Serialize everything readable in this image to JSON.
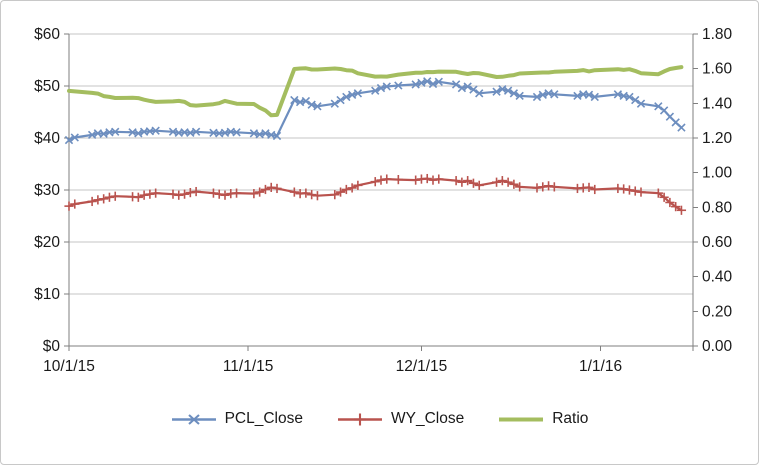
{
  "chart_data": {
    "type": "line",
    "title": "",
    "x_axis": {
      "tick_labels": [
        "10/1/15",
        "11/1/15",
        "12/1/15",
        "1/1/16"
      ],
      "tick_positions_days": [
        0,
        31,
        61,
        92
      ],
      "total_days": 108
    },
    "left_axis": {
      "min": 0,
      "max": 60,
      "step": 10,
      "tick_labels": [
        "$0",
        "$10",
        "$20",
        "$30",
        "$40",
        "$50",
        "$60"
      ]
    },
    "right_axis": {
      "min": 0,
      "max": 1.8,
      "step": 0.2,
      "tick_labels": [
        "0.00",
        "0.20",
        "0.40",
        "0.60",
        "0.80",
        "1.00",
        "1.20",
        "1.40",
        "1.60",
        "1.80"
      ]
    },
    "grid": true,
    "legend": {
      "position": "bottom",
      "items": [
        "PCL_Close",
        "WY_Close",
        "Ratio"
      ]
    },
    "style": {
      "grid_color": "#c6c6c6",
      "axis_color": "#7f7f7f",
      "text_color": "#1a1a1a",
      "background": "#ffffff",
      "frame_border": "#c8c8c8"
    },
    "x_days": [
      0,
      1,
      4,
      5,
      6,
      7,
      8,
      11,
      12,
      13,
      14,
      15,
      18,
      19,
      20,
      21,
      22,
      25,
      26,
      27,
      28,
      29,
      32,
      33,
      34,
      35,
      36,
      39,
      40,
      41,
      42,
      43,
      46,
      47,
      48,
      49,
      50,
      53,
      54,
      55,
      57,
      60,
      61,
      62,
      63,
      64,
      67,
      68,
      69,
      70,
      71,
      74,
      75,
      76,
      77,
      78,
      81,
      82,
      83,
      84,
      88,
      89,
      90,
      91,
      95,
      96,
      97,
      98,
      99,
      102,
      103,
      104,
      105,
      106
    ],
    "series": [
      {
        "name": "PCL_Close",
        "axis": "left",
        "color": "#6d8ebf",
        "marker": "x",
        "line_width": 2.2,
        "values": [
          39.6,
          40.1,
          40.6,
          40.9,
          40.8,
          41.1,
          41.2,
          41.1,
          40.9,
          41.2,
          41.3,
          41.4,
          41.2,
          41.0,
          41.1,
          41.0,
          41.2,
          41.0,
          40.9,
          41.0,
          41.2,
          41.1,
          40.9,
          40.7,
          40.9,
          40.6,
          40.4,
          47.3,
          46.9,
          47.1,
          46.4,
          46.1,
          46.6,
          47.3,
          47.9,
          48.3,
          48.6,
          49.1,
          49.6,
          49.9,
          50.1,
          50.3,
          50.6,
          50.9,
          50.4,
          50.8,
          50.3,
          49.6,
          49.9,
          49.3,
          48.6,
          48.9,
          49.4,
          49.1,
          48.6,
          48.1,
          47.9,
          48.3,
          48.6,
          48.4,
          48.1,
          48.4,
          48.3,
          47.9,
          48.4,
          48.1,
          47.9,
          47.3,
          46.6,
          46.1,
          45.3,
          44.1,
          43.0,
          42.0
        ]
      },
      {
        "name": "WY_Close",
        "axis": "left",
        "color": "#b9534e",
        "marker": "plus",
        "line_width": 2.2,
        "values": [
          26.9,
          27.3,
          27.8,
          28.1,
          28.3,
          28.6,
          28.8,
          28.7,
          28.6,
          29.0,
          29.2,
          29.4,
          29.2,
          29.0,
          29.2,
          29.5,
          29.7,
          29.4,
          29.2,
          29.0,
          29.3,
          29.4,
          29.3,
          29.6,
          30.1,
          30.5,
          30.3,
          29.6,
          29.3,
          29.4,
          29.1,
          28.9,
          29.1,
          29.6,
          30.1,
          30.4,
          30.9,
          31.6,
          31.9,
          32.1,
          32.0,
          31.9,
          32.1,
          32.2,
          31.9,
          32.1,
          31.8,
          31.5,
          31.8,
          31.3,
          30.9,
          31.5,
          31.8,
          31.5,
          31.1,
          30.6,
          30.4,
          30.6,
          30.8,
          30.6,
          30.3,
          30.4,
          30.5,
          30.1,
          30.3,
          30.2,
          30.0,
          29.8,
          29.6,
          29.4,
          28.6,
          27.6,
          26.8,
          26.1
        ]
      },
      {
        "name": "Ratio",
        "axis": "right",
        "color": "#a4bd5f",
        "marker": "none",
        "line_width": 4,
        "values": [
          1.472,
          1.469,
          1.46,
          1.456,
          1.442,
          1.437,
          1.431,
          1.432,
          1.43,
          1.421,
          1.414,
          1.408,
          1.411,
          1.414,
          1.408,
          1.39,
          1.387,
          1.395,
          1.401,
          1.414,
          1.406,
          1.398,
          1.396,
          1.375,
          1.359,
          1.331,
          1.333,
          1.598,
          1.601,
          1.602,
          1.595,
          1.595,
          1.601,
          1.598,
          1.591,
          1.589,
          1.573,
          1.554,
          1.555,
          1.554,
          1.566,
          1.577,
          1.576,
          1.581,
          1.58,
          1.583,
          1.582,
          1.575,
          1.569,
          1.575,
          1.573,
          1.552,
          1.553,
          1.559,
          1.563,
          1.572,
          1.576,
          1.578,
          1.578,
          1.582,
          1.587,
          1.592,
          1.584,
          1.591,
          1.597,
          1.593,
          1.597,
          1.587,
          1.574,
          1.568,
          1.584,
          1.598,
          1.604,
          1.609
        ]
      }
    ]
  }
}
